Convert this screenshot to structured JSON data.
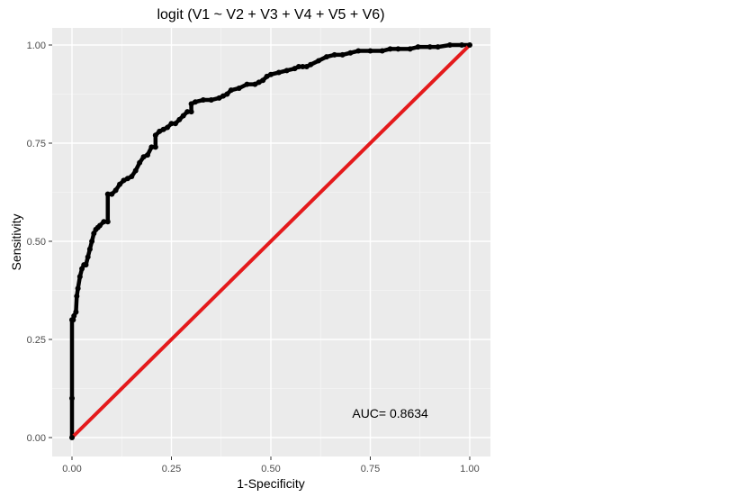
{
  "chart_data": {
    "type": "line",
    "title": "logit (V1 ~ V2 + V3 + V4 + V5 + V6)",
    "xlabel": "1-Specificity",
    "ylabel": "Sensitivity",
    "xlim": [
      0,
      1
    ],
    "ylim": [
      0,
      1
    ],
    "x_ticks": [
      0,
      0.25,
      0.5,
      0.75,
      1
    ],
    "y_ticks": [
      0,
      0.25,
      0.5,
      0.75,
      1
    ],
    "x_tick_labels": [
      "0.00",
      "0.25",
      "0.50",
      "0.75",
      "1.00"
    ],
    "y_tick_labels": [
      "0.00",
      "0.25",
      "0.50",
      "0.75",
      "1.00"
    ],
    "grid": true,
    "panel_background": "#ebebeb",
    "annotation": {
      "text": "AUC= 0.8634",
      "x": 0.8,
      "y": 0.05
    },
    "series": [
      {
        "color": "#000000",
        "x": [
          0,
          0,
          0,
          0.003,
          0.005,
          0.01,
          0.012,
          0.015,
          0.02,
          0.025,
          0.03,
          0.035,
          0.04,
          0.045,
          0.05,
          0.055,
          0.06,
          0.065,
          0.07,
          0.08,
          0.09,
          0.09,
          0.1,
          0.11,
          0.12,
          0.13,
          0.14,
          0.15,
          0.16,
          0.17,
          0.18,
          0.19,
          0.2,
          0.21,
          0.21,
          0.22,
          0.23,
          0.24,
          0.25,
          0.26,
          0.27,
          0.28,
          0.29,
          0.3,
          0.3,
          0.31,
          0.33,
          0.35,
          0.37,
          0.38,
          0.39,
          0.4,
          0.42,
          0.44,
          0.46,
          0.47,
          0.48,
          0.49,
          0.5,
          0.52,
          0.54,
          0.56,
          0.57,
          0.58,
          0.59,
          0.6,
          0.62,
          0.64,
          0.66,
          0.68,
          0.7,
          0.72,
          0.75,
          0.78,
          0.8,
          0.82,
          0.85,
          0.87,
          0.9,
          0.92,
          0.95,
          0.98,
          1
        ],
        "y": [
          0,
          0.1,
          0.3,
          0.3,
          0.31,
          0.32,
          0.36,
          0.38,
          0.41,
          0.43,
          0.44,
          0.44,
          0.46,
          0.48,
          0.5,
          0.52,
          0.53,
          0.535,
          0.54,
          0.55,
          0.55,
          0.62,
          0.62,
          0.63,
          0.645,
          0.655,
          0.66,
          0.665,
          0.68,
          0.7,
          0.715,
          0.72,
          0.74,
          0.74,
          0.77,
          0.78,
          0.785,
          0.79,
          0.8,
          0.8,
          0.81,
          0.82,
          0.83,
          0.83,
          0.85,
          0.855,
          0.86,
          0.86,
          0.865,
          0.87,
          0.875,
          0.885,
          0.89,
          0.9,
          0.9,
          0.905,
          0.91,
          0.92,
          0.925,
          0.93,
          0.935,
          0.94,
          0.945,
          0.945,
          0.945,
          0.95,
          0.96,
          0.97,
          0.975,
          0.975,
          0.98,
          0.985,
          0.985,
          0.985,
          0.99,
          0.99,
          0.99,
          0.995,
          0.995,
          0.995,
          1,
          1,
          1
        ]
      },
      {
        "color": "#e41a1c",
        "x": [
          0,
          1
        ],
        "y": [
          0,
          1
        ]
      }
    ]
  }
}
